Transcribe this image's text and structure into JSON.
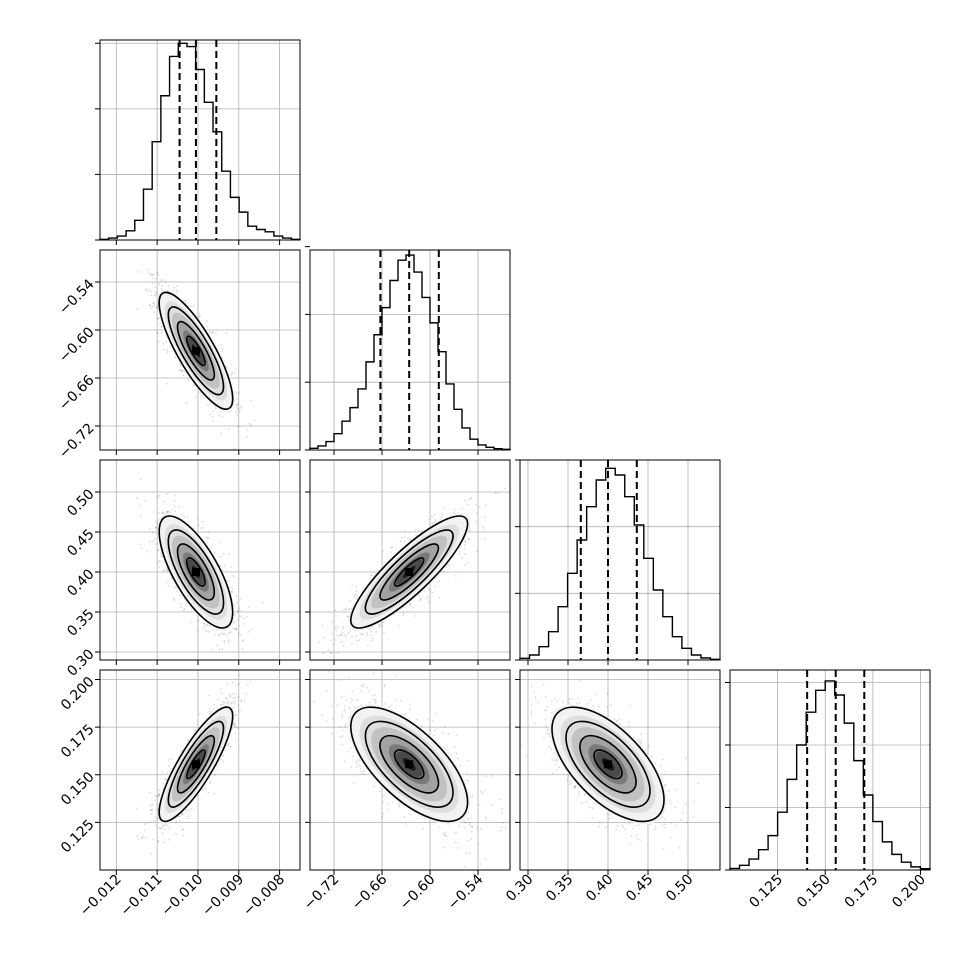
{
  "chart_data": {
    "type": "corner",
    "parameters": [
      {
        "range": [
          -0.0124,
          -0.0075
        ],
        "ticks": [
          -0.012,
          -0.011,
          -0.01,
          -0.009,
          -0.008
        ],
        "tick_labels": [
          "−0.012",
          "−0.011",
          "−0.010",
          "−0.009",
          "−0.008"
        ],
        "quantiles": [
          -0.01045,
          -0.01005,
          -0.00955
        ],
        "hist_max": 6.1,
        "hist_counts": [
          0.02,
          0.06,
          0.12,
          0.28,
          0.6,
          1.55,
          3.0,
          4.4,
          5.6,
          6.0,
          5.9,
          5.2,
          4.2,
          3.3,
          2.1,
          1.3,
          0.85,
          0.42,
          0.32,
          0.25,
          0.12,
          0.06,
          0.02
        ]
      },
      {
        "range": [
          -0.75,
          -0.5
        ],
        "ticks": [
          -0.72,
          -0.66,
          -0.6,
          -0.54
        ],
        "tick_labels": [
          "−0.72",
          "−0.66",
          "−0.60",
          "−0.54"
        ],
        "quantiles": [
          -0.662,
          -0.626,
          -0.589
        ],
        "hist_max": 5.9,
        "hist_counts": [
          0.05,
          0.12,
          0.25,
          0.48,
          0.85,
          1.25,
          1.8,
          2.6,
          3.4,
          4.2,
          5.0,
          5.6,
          5.75,
          5.25,
          4.5,
          3.75,
          2.9,
          1.95,
          1.2,
          0.65,
          0.32,
          0.15,
          0.08,
          0.04,
          0.02
        ]
      },
      {
        "range": [
          0.29,
          0.54
        ],
        "ticks": [
          0.3,
          0.35,
          0.4,
          0.45,
          0.5
        ],
        "tick_labels": [
          "0.30",
          "0.35",
          "0.40",
          "0.45",
          "0.50"
        ],
        "quantiles": [
          0.366,
          0.4,
          0.436
        ],
        "hist_max": 6.0,
        "hist_counts": [
          0.05,
          0.15,
          0.4,
          0.85,
          1.6,
          2.6,
          3.6,
          4.6,
          5.4,
          5.75,
          5.55,
          4.9,
          4.05,
          3.05,
          2.1,
          1.3,
          0.7,
          0.35,
          0.15,
          0.06,
          0.02
        ]
      },
      {
        "range": [
          0.1,
          0.205
        ],
        "ticks": [
          0.125,
          0.15,
          0.175,
          0.2
        ],
        "tick_labels": [
          "0.125",
          "0.150",
          "0.175",
          "0.200"
        ],
        "quantiles": [
          0.1405,
          0.1555,
          0.1705
        ],
        "hist_max": 6.4,
        "hist_counts": [
          0.05,
          0.15,
          0.35,
          0.65,
          1.1,
          1.85,
          2.9,
          4.0,
          5.05,
          5.75,
          6.05,
          5.6,
          4.7,
          3.5,
          2.4,
          1.55,
          0.9,
          0.5,
          0.25,
          0.1,
          0.04
        ]
      }
    ],
    "pairs": [
      {
        "row": 1,
        "col": 0,
        "center": [
          -0.01005,
          -0.626
        ],
        "rho": -0.82
      },
      {
        "row": 2,
        "col": 0,
        "center": [
          -0.01005,
          0.4
        ],
        "rho": -0.72
      },
      {
        "row": 2,
        "col": 1,
        "center": [
          -0.626,
          0.4
        ],
        "rho": 0.86
      },
      {
        "row": 3,
        "col": 0,
        "center": [
          -0.01005,
          0.1555
        ],
        "rho": 0.84
      },
      {
        "row": 3,
        "col": 1,
        "center": [
          -0.626,
          0.1555
        ],
        "rho": -0.66
      },
      {
        "row": 3,
        "col": 2,
        "center": [
          0.4,
          0.1555
        ],
        "rho": -0.62
      }
    ],
    "contour_levels_sigma": [
      0.5,
      1.0,
      1.5,
      2.0
    ],
    "grid": true
  }
}
